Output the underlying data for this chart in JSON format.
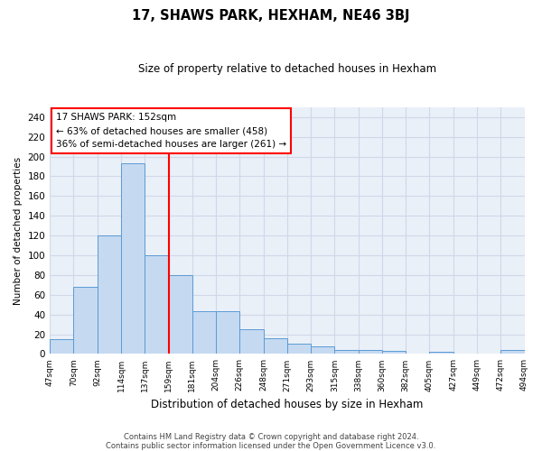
{
  "title": "17, SHAWS PARK, HEXHAM, NE46 3BJ",
  "subtitle": "Size of property relative to detached houses in Hexham",
  "xlabel": "Distribution of detached houses by size in Hexham",
  "ylabel": "Number of detached properties",
  "footnote1": "Contains HM Land Registry data © Crown copyright and database right 2024.",
  "footnote2": "Contains public sector information licensed under the Open Government Licence v3.0.",
  "bin_labels": [
    "47sqm",
    "70sqm",
    "92sqm",
    "114sqm",
    "137sqm",
    "159sqm",
    "181sqm",
    "204sqm",
    "226sqm",
    "248sqm",
    "271sqm",
    "293sqm",
    "315sqm",
    "338sqm",
    "360sqm",
    "382sqm",
    "405sqm",
    "427sqm",
    "449sqm",
    "472sqm",
    "494sqm"
  ],
  "bar_values": [
    15,
    68,
    120,
    193,
    100,
    80,
    43,
    43,
    25,
    16,
    10,
    8,
    4,
    4,
    3,
    0,
    2,
    0,
    0,
    4
  ],
  "bar_color": "#c5d9f1",
  "bar_edge_color": "#5b9bd5",
  "vline_label_idx": 5,
  "vline_color": "red",
  "annotation_title": "17 SHAWS PARK: 152sqm",
  "annotation_line1": "← 63% of detached houses are smaller (458)",
  "annotation_line2": "36% of semi-detached houses are larger (261) →",
  "annotation_box_color": "red",
  "ylim": [
    0,
    250
  ],
  "yticks": [
    0,
    20,
    40,
    60,
    80,
    100,
    120,
    140,
    160,
    180,
    200,
    220,
    240
  ],
  "grid_color": "#d0d8e8",
  "background_color": "#eaf0f8"
}
